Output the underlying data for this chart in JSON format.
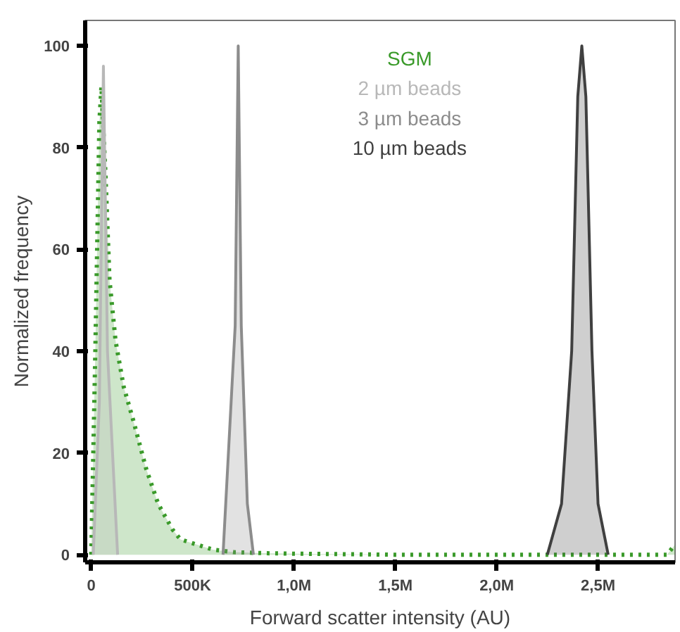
{
  "chart_data": {
    "type": "area",
    "xlabel": "Forward scatter intensity (AU)",
    "ylabel": "Normalized frequency",
    "xlim": [
      -30000,
      2880000
    ],
    "ylim": [
      -1.5,
      105
    ],
    "xticks": [
      {
        "value": 0,
        "label": "0"
      },
      {
        "value": 500000,
        "label": "500K"
      },
      {
        "value": 1000000,
        "label": "1,0M"
      },
      {
        "value": 1500000,
        "label": "1,5M"
      },
      {
        "value": 2000000,
        "label": "2,0M"
      },
      {
        "value": 2500000,
        "label": "2,5M"
      }
    ],
    "yticks": [
      0,
      20,
      40,
      60,
      80,
      100
    ],
    "grid": false,
    "legend": "top right",
    "series": [
      {
        "name": "SGM",
        "color": "#3a9a2a",
        "line_style": "dotted",
        "x": [
          0,
          20000,
          40000,
          50000,
          70000,
          90000,
          120000,
          160000,
          210000,
          270000,
          330000,
          400000,
          440000,
          520000,
          600000,
          700000,
          850000,
          1000000,
          1500000,
          2000000,
          2500000,
          2840000,
          2880000
        ],
        "values": [
          0,
          40,
          85,
          92,
          75,
          54,
          42,
          33,
          26,
          17,
          10,
          5,
          3,
          2,
          1,
          0.5,
          0.3,
          0.2,
          0,
          0,
          0,
          0,
          2
        ]
      },
      {
        "name": "2 µm beads",
        "color": "#b8b8b8",
        "line_style": "solid",
        "x": [
          10000,
          40000,
          60000,
          80000,
          130000
        ],
        "values": [
          0,
          30,
          96,
          40,
          0
        ]
      },
      {
        "name": "3 µm beads",
        "color": "#8c8c8c",
        "line_style": "solid",
        "x": [
          650000,
          690000,
          710000,
          725000,
          740000,
          770000,
          800000
        ],
        "values": [
          0,
          30,
          45,
          100,
          45,
          10,
          0
        ]
      },
      {
        "name": "10 µm beads",
        "color": "#404040",
        "line_style": "solid",
        "x": [
          2250000,
          2320000,
          2370000,
          2400000,
          2420000,
          2440000,
          2470000,
          2500000,
          2550000
        ],
        "values": [
          0,
          10,
          40,
          90,
          100,
          90,
          40,
          10,
          0
        ]
      }
    ]
  }
}
